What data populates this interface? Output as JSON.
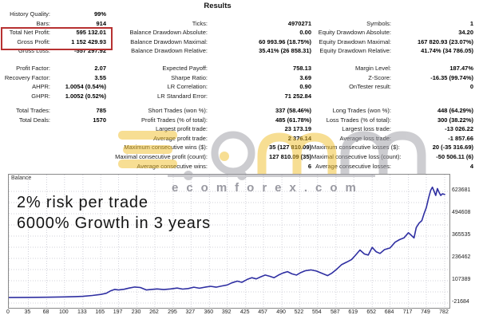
{
  "header": {
    "title": "Results"
  },
  "stats": {
    "highlight_color": "#b73131",
    "block1": [
      [
        "History Quality:",
        "99%",
        "",
        "",
        "",
        ""
      ],
      [
        "Bars:",
        "914",
        "Ticks:",
        "4970271",
        "Symbols:",
        "1"
      ],
      [
        "Total Net Profit:",
        "595 132.01",
        "Balance Drawdown Absolute:",
        "0.00",
        "Equity Drawdown Absolute:",
        "34.20"
      ],
      [
        "Gross Profit:",
        "1 152 429.93",
        "Balance Drawdown Maximal:",
        "60 993.96 (18.75%)",
        "Equity Drawdown Maximal:",
        "167 820.93 (23.07%)"
      ],
      [
        "Gross Loss:",
        "-557 297.92",
        "Balance Drawdown Relative:",
        "35.41% (26 858.31)",
        "Equity Drawdown Relative:",
        "41.74% (34 786.05)"
      ]
    ],
    "block2": [
      [
        "Profit Factor:",
        "2.07",
        "Expected Payoff:",
        "758.13",
        "Margin Level:",
        "187.47%"
      ],
      [
        "Recovery Factor:",
        "3.55",
        "Sharpe Ratio:",
        "3.69",
        "Z-Score:",
        "-16.35 (99.74%)"
      ],
      [
        "AHPR:",
        "1.0054 (0.54%)",
        "LR Correlation:",
        "0.90",
        "OnTester result:",
        "0"
      ],
      [
        "GHPR:",
        "1.0052 (0.52%)",
        "LR Standard Error:",
        "71 252.84",
        "",
        ""
      ]
    ],
    "block3": [
      [
        "Total Trades:",
        "785",
        "Short Trades (won %):",
        "337 (58.46%)",
        "Long Trades (won %):",
        "448 (64.29%)"
      ],
      [
        "Total Deals:",
        "1570",
        "Profit Trades (% of total):",
        "485 (61.78%)",
        "Loss Trades (% of total):",
        "300 (38.22%)"
      ],
      [
        "",
        "",
        "Largest profit trade:",
        "23 173.19",
        "Largest loss trade:",
        "-13 026.22"
      ],
      [
        "",
        "",
        "Average profit trade:",
        "2 376.14",
        "Average loss trade:",
        "-1 857.66"
      ],
      [
        "",
        "",
        "Maximum consecutive wins ($):",
        "35 (127 810.09)",
        "Maximum consecutive losses ($):",
        "20 (-35 316.69)"
      ],
      [
        "",
        "",
        "Maximal consecutive profit (count):",
        "127 810.09 (35)",
        "Maximal consecutive loss (count):",
        "-50 506.11 (6)"
      ],
      [
        "",
        "",
        "Average consecutive wins:",
        "6",
        "Average consecutive losses:",
        "4"
      ]
    ]
  },
  "watermark": {
    "url_text": "ecomforex.com",
    "yellow": "#f0be2a",
    "gray": "#9b9ba3"
  },
  "chart_data": {
    "type": "line",
    "title": "Balance",
    "annotation_lines": "2% risk per trade\n6000% Growth in 3 years",
    "line_color": "#2f2fa2",
    "grid": true,
    "legend_position": "top-left",
    "xlabel": "",
    "ylabel": "",
    "xlim": [
      0,
      790
    ],
    "ylim": [
      -49000,
      720000
    ],
    "x_ticks": [
      0,
      35,
      68,
      100,
      133,
      165,
      197,
      230,
      262,
      295,
      327,
      360,
      392,
      425,
      457,
      490,
      522,
      554,
      587,
      619,
      652,
      684,
      717,
      749,
      782
    ],
    "y_ticks": [
      623681,
      494608,
      365535,
      236462,
      107389,
      -21684
    ],
    "series": [
      {
        "name": "Balance",
        "x": [
          0,
          35,
          68,
          100,
          120,
          133,
          150,
          165,
          175,
          182,
          190,
          197,
          207,
          216,
          226,
          236,
          247,
          256,
          266,
          278,
          290,
          302,
          312,
          322,
          332,
          342,
          352,
          362,
          372,
          382,
          392,
          400,
          410,
          418,
          428,
          436,
          444,
          452,
          460,
          468,
          476,
          484,
          492,
          500,
          508,
          516,
          524,
          532,
          542,
          552,
          562,
          572,
          580,
          587,
          597,
          607,
          615,
          622,
          630,
          638,
          645,
          652,
          659,
          666,
          674,
          684,
          693,
          701,
          709,
          717,
          722,
          727,
          731,
          736,
          741,
          745,
          749,
          753,
          757,
          760,
          763,
          766,
          769,
          772,
          775,
          778,
          782
        ],
        "y": [
          10000,
          11000,
          12000,
          14000,
          15500,
          17000,
          22000,
          28000,
          35000,
          48000,
          57000,
          54000,
          58000,
          65000,
          71000,
          68000,
          54000,
          57000,
          60000,
          56000,
          60000,
          65000,
          59000,
          62000,
          70000,
          64000,
          70000,
          75000,
          70000,
          77000,
          83000,
          95000,
          105000,
          98000,
          115000,
          125000,
          118000,
          130000,
          140000,
          133000,
          125000,
          140000,
          152000,
          160000,
          147000,
          140000,
          155000,
          165000,
          170000,
          163000,
          150000,
          137000,
          152000,
          170000,
          200000,
          216000,
          230000,
          255000,
          285000,
          262000,
          256000,
          300000,
          275000,
          265000,
          287000,
          297000,
          330000,
          345000,
          355000,
          385000,
          370000,
          355000,
          415000,
          440000,
          455000,
          495000,
          530000,
          585000,
          630000,
          648000,
          625000,
          600000,
          640000,
          618000,
          600000,
          610000,
          606000
        ]
      }
    ]
  }
}
